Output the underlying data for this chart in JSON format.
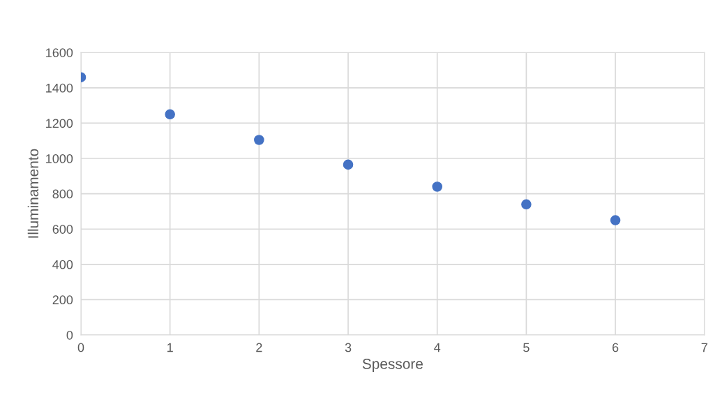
{
  "chart_data": {
    "type": "scatter",
    "xlabel": "Spessore",
    "ylabel": "Illuminamento",
    "x": [
      0,
      1,
      2,
      3,
      4,
      5,
      6
    ],
    "series": [
      {
        "color": "#4472c4",
        "values": [
          1460,
          1250,
          1105,
          965,
          840,
          740,
          650
        ]
      }
    ],
    "xlim": [
      0,
      7
    ],
    "xticks": [
      0,
      1,
      2,
      3,
      4,
      5,
      6,
      7
    ],
    "ylim": [
      0,
      1600
    ],
    "yticks": [
      0,
      200,
      400,
      600,
      800,
      1000,
      1200,
      1400,
      1600
    ],
    "grid": true,
    "marker": "circle"
  }
}
